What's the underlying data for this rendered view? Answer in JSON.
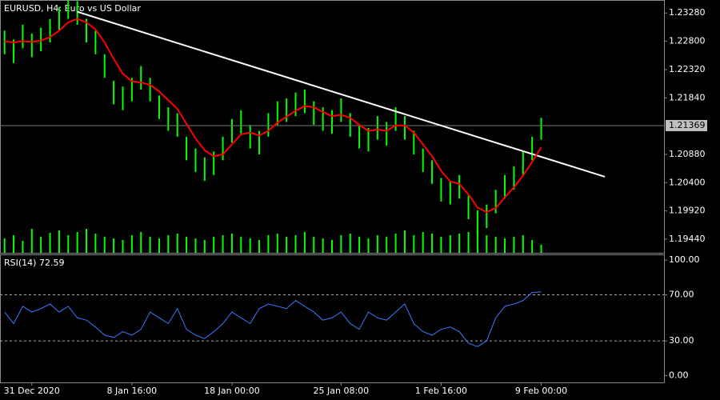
{
  "chart_data": [
    {
      "type": "ohlc",
      "title": "EURUSD, H4:  Euro vs US Dollar",
      "categories": [
        null,
        null,
        null,
        "31 Dec 2020",
        null,
        null,
        null,
        null,
        null,
        null,
        null,
        null,
        null,
        null,
        "8 Jan 16:00",
        null,
        null,
        null,
        null,
        null,
        null,
        null,
        null,
        null,
        null,
        "18 Jan 00:00",
        null,
        null,
        null,
        null,
        null,
        null,
        null,
        null,
        null,
        null,
        null,
        "25 Jan 08:00",
        null,
        null,
        null,
        null,
        null,
        null,
        null,
        null,
        null,
        null,
        "1 Feb 16:00",
        null,
        null,
        null,
        null,
        null,
        null,
        null,
        null,
        null,
        null,
        "9 Feb 00:00"
      ],
      "high": [
        1.2298,
        1.2283,
        1.2308,
        1.2293,
        1.2303,
        1.2318,
        1.2338,
        1.2349,
        1.2348,
        1.2318,
        1.2298,
        1.2258,
        1.2213,
        1.2203,
        1.2218,
        1.2238,
        1.2218,
        1.2188,
        1.2168,
        1.2158,
        1.2118,
        1.2098,
        1.2083,
        1.2093,
        1.2118,
        1.2148,
        1.2163,
        1.2138,
        1.2128,
        1.2158,
        1.2178,
        1.2183,
        1.2193,
        1.2198,
        1.2178,
        1.2168,
        1.2163,
        1.2183,
        1.2158,
        1.2138,
        1.2133,
        1.2153,
        1.2143,
        1.2168,
        1.2153,
        1.2128,
        1.2098,
        1.2078,
        1.2048,
        1.2043,
        1.2053,
        1.2018,
        1.1993,
        1.2003,
        1.2028,
        1.2053,
        1.2068,
        1.2093,
        1.2118,
        1.215
      ],
      "low": [
        1.2258,
        1.2243,
        1.2268,
        1.2253,
        1.2263,
        1.2278,
        1.2298,
        1.2318,
        1.2308,
        1.2278,
        1.2258,
        1.2218,
        1.2173,
        1.2163,
        1.2178,
        1.2198,
        1.2178,
        1.2148,
        1.2128,
        1.2118,
        1.2078,
        1.2058,
        1.2043,
        1.2053,
        1.2078,
        1.2108,
        1.2123,
        1.2098,
        1.2088,
        1.2118,
        1.2138,
        1.2143,
        1.2153,
        1.2158,
        1.2138,
        1.2128,
        1.2123,
        1.2143,
        1.2118,
        1.2098,
        1.2093,
        1.2113,
        1.2103,
        1.2128,
        1.2113,
        1.2088,
        1.2058,
        1.2038,
        1.2008,
        1.2003,
        1.2013,
        1.1978,
        1.1953,
        1.1963,
        1.1988,
        1.2013,
        1.2028,
        1.2053,
        1.2078,
        1.2113
      ],
      "color": "#00ff00",
      "series": [
        {
          "color": "#ff0000",
          "values": [
            1.228,
            1.2278,
            1.228,
            1.2279,
            1.2281,
            1.2287,
            1.2298,
            1.2312,
            1.2318,
            1.2312,
            1.23,
            1.2278,
            1.225,
            1.2225,
            1.2212,
            1.221,
            1.2206,
            1.2195,
            1.218,
            1.2165,
            1.214,
            1.2115,
            1.2095,
            1.2085,
            1.2088,
            1.2105,
            1.2122,
            1.2125,
            1.212,
            1.2128,
            1.2142,
            1.2152,
            1.2162,
            1.217,
            1.2168,
            1.216,
            1.2153,
            1.2155,
            1.215,
            1.2138,
            1.2128,
            1.213,
            1.2128,
            1.2137,
            1.2137,
            1.2125,
            1.2105,
            1.2085,
            1.206,
            1.2042,
            1.2038,
            1.202,
            1.1998,
            1.199,
            1.1997,
            1.2015,
            1.2032,
            1.2052,
            1.2075,
            1.21
          ]
        }
      ],
      "volume": [
        18,
        22,
        15,
        30,
        20,
        25,
        28,
        22,
        26,
        30,
        24,
        20,
        18,
        16,
        22,
        26,
        20,
        18,
        22,
        24,
        20,
        18,
        16,
        20,
        22,
        24,
        20,
        18,
        16,
        22,
        24,
        20,
        22,
        26,
        20,
        18,
        16,
        22,
        24,
        20,
        18,
        22,
        20,
        24,
        28,
        22,
        26,
        24,
        20,
        22,
        24,
        26,
        28,
        22,
        20,
        18,
        20,
        22,
        16,
        10
      ],
      "trendline": {
        "x": [
          8,
          66
        ],
        "values": [
          1.233,
          1.205
        ],
        "color": "#ffffff"
      },
      "current_price": {
        "value": 1.21369,
        "label": "1.21369"
      },
      "xlim": [
        -0.5,
        72.5
      ],
      "ylim": [
        1.1921,
        1.235
      ],
      "yticks": [
        {
          "value": 1.2328,
          "label": "1.23280"
        },
        {
          "value": 1.228,
          "label": "1.22800"
        },
        {
          "value": 1.2232,
          "label": "1.22320"
        },
        {
          "value": 1.2184,
          "label": "1.21840"
        },
        {
          "value": 1.2088,
          "label": "1.20880"
        },
        {
          "value": 1.204,
          "label": "1.20400"
        },
        {
          "value": 1.1992,
          "label": "1.19920"
        },
        {
          "value": 1.1944,
          "label": "1.19440"
        }
      ]
    },
    {
      "type": "line",
      "title": "RSI(14) 72.59",
      "series": [
        {
          "color": "#3a78ff",
          "values": [
            55,
            45,
            60,
            55,
            58,
            62,
            55,
            60,
            50,
            48,
            42,
            35,
            33,
            38,
            35,
            40,
            55,
            50,
            45,
            58,
            40,
            35,
            32,
            38,
            45,
            55,
            50,
            45,
            58,
            62,
            60,
            58,
            65,
            60,
            55,
            48,
            50,
            55,
            45,
            40,
            55,
            50,
            48,
            55,
            62,
            45,
            38,
            35,
            40,
            42,
            38,
            28,
            25,
            30,
            50,
            60,
            62,
            65,
            72,
            72.59
          ]
        }
      ],
      "levels": [
        70,
        30
      ],
      "xlim": [
        -0.5,
        72.5
      ],
      "ylim": [
        -6,
        105
      ],
      "yticks": [
        {
          "value": 100,
          "label": "100.00"
        },
        {
          "value": 70,
          "label": "70.00"
        },
        {
          "value": 30,
          "label": "30.00"
        },
        {
          "value": 0,
          "label": "0.00"
        }
      ]
    }
  ]
}
